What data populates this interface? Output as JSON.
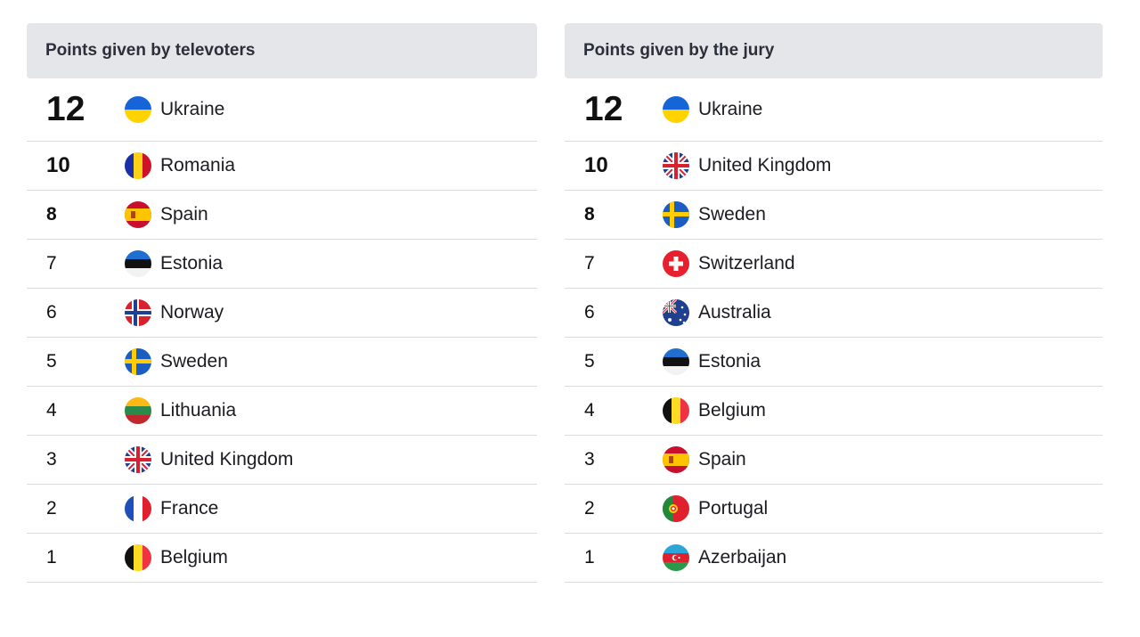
{
  "televoters": {
    "title": "Points given by televoters",
    "rows": [
      {
        "points": "12",
        "country": "Ukraine",
        "flag": "ukraine-flag-icon"
      },
      {
        "points": "10",
        "country": "Romania",
        "flag": "romania-flag-icon"
      },
      {
        "points": "8",
        "country": "Spain",
        "flag": "spain-flag-icon"
      },
      {
        "points": "7",
        "country": "Estonia",
        "flag": "estonia-flag-icon"
      },
      {
        "points": "6",
        "country": "Norway",
        "flag": "norway-flag-icon"
      },
      {
        "points": "5",
        "country": "Sweden",
        "flag": "sweden-flag-icon"
      },
      {
        "points": "4",
        "country": "Lithuania",
        "flag": "lithuania-flag-icon"
      },
      {
        "points": "3",
        "country": "United Kingdom",
        "flag": "united-kingdom-flag-icon"
      },
      {
        "points": "2",
        "country": "France",
        "flag": "france-flag-icon"
      },
      {
        "points": "1",
        "country": "Belgium",
        "flag": "belgium-flag-icon"
      }
    ]
  },
  "jury": {
    "title": "Points given by the jury",
    "rows": [
      {
        "points": "12",
        "country": "Ukraine",
        "flag": "ukraine-flag-icon"
      },
      {
        "points": "10",
        "country": "United Kingdom",
        "flag": "united-kingdom-flag-icon"
      },
      {
        "points": "8",
        "country": "Sweden",
        "flag": "sweden-flag-icon"
      },
      {
        "points": "7",
        "country": "Switzerland",
        "flag": "switzerland-flag-icon"
      },
      {
        "points": "6",
        "country": "Australia",
        "flag": "australia-flag-icon"
      },
      {
        "points": "5",
        "country": "Estonia",
        "flag": "estonia-flag-icon"
      },
      {
        "points": "4",
        "country": "Belgium",
        "flag": "belgium-flag-icon"
      },
      {
        "points": "3",
        "country": "Spain",
        "flag": "spain-flag-icon"
      },
      {
        "points": "2",
        "country": "Portugal",
        "flag": "portugal-flag-icon"
      },
      {
        "points": "1",
        "country": "Azerbaijan",
        "flag": "azerbaijan-flag-icon"
      }
    ]
  },
  "colors": {
    "header_bg": "#e4e6ea",
    "row_divider": "#d9dbdf"
  }
}
